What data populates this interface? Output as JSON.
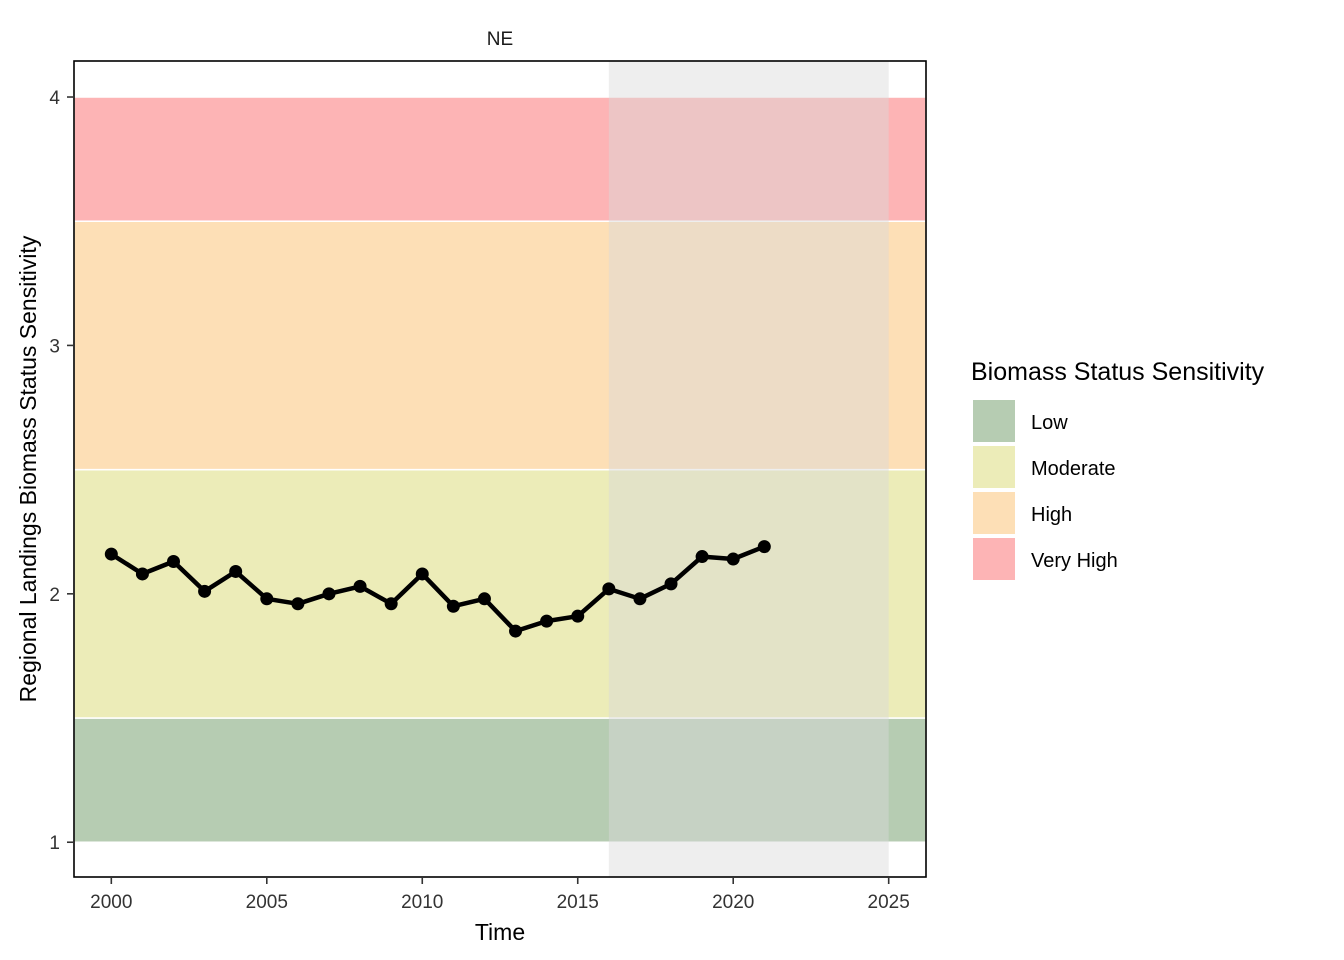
{
  "chart_data": {
    "type": "line",
    "facet_label": "NE",
    "xlabel": "Time",
    "ylabel": "Regional Landings Biomass Status Sensitivity",
    "xlim": [
      1998.8,
      2026.2
    ],
    "ylim": [
      0.86,
      4.145
    ],
    "x_ticks": [
      2000,
      2005,
      2010,
      2015,
      2020,
      2025
    ],
    "y_ticks": [
      1,
      2,
      3,
      4
    ],
    "grid": false,
    "shaded_period": {
      "x_start": 2016,
      "x_end": 2025,
      "color": "#d9d9d9"
    },
    "bands": [
      {
        "name": "Low",
        "y_start": 1.0,
        "y_end": 1.5,
        "color": "#b6ccb2"
      },
      {
        "name": "Moderate",
        "y_start": 1.5,
        "y_end": 2.5,
        "color": "#ececb8"
      },
      {
        "name": "High",
        "y_start": 2.5,
        "y_end": 3.5,
        "color": "#fddfb6"
      },
      {
        "name": "Very High",
        "y_start": 3.5,
        "y_end": 4.0,
        "color": "#fdb4b5"
      }
    ],
    "series": [
      {
        "x": [
          2000,
          2001,
          2002,
          2003,
          2004,
          2005,
          2006,
          2007,
          2008,
          2009,
          2010,
          2011,
          2012,
          2013,
          2014,
          2015,
          2016,
          2017,
          2018,
          2019,
          2020,
          2021
        ],
        "values": [
          2.16,
          2.08,
          2.13,
          2.01,
          2.09,
          1.98,
          1.96,
          2.0,
          2.03,
          1.96,
          2.08,
          1.95,
          1.98,
          1.85,
          1.89,
          1.91,
          2.02,
          1.98,
          2.04,
          2.15,
          2.14,
          2.19
        ],
        "color": "#000000"
      }
    ],
    "legend": {
      "title": "Biomass Status Sensitivity",
      "position": "right",
      "items": [
        {
          "label": "Low",
          "color": "#b6ccb2"
        },
        {
          "label": "Moderate",
          "color": "#ececb8"
        },
        {
          "label": "High",
          "color": "#fddfb6"
        },
        {
          "label": "Very High",
          "color": "#fdb4b5"
        }
      ]
    }
  }
}
